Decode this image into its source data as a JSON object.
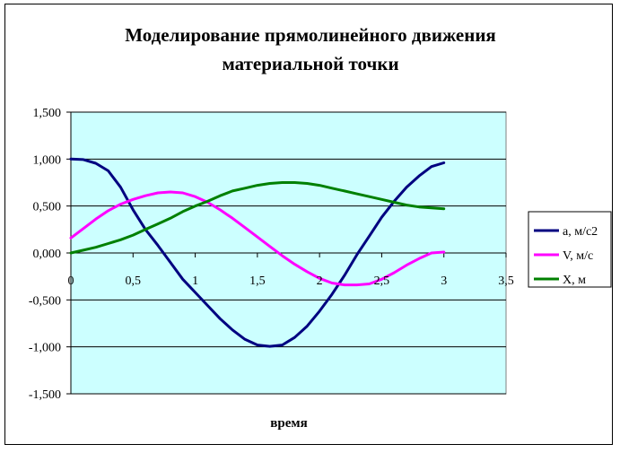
{
  "chart_data": {
    "type": "line",
    "title_lines": [
      "Моделирование прямолинейного движения",
      "материальной точки"
    ],
    "xlabel": "время",
    "ylabel": "",
    "xlim": [
      0,
      3.5
    ],
    "ylim": [
      -1.5,
      1.5
    ],
    "x_ticks": [
      "0",
      "0,5",
      "1",
      "1,5",
      "2",
      "2,5",
      "3",
      "3,5"
    ],
    "y_ticks": [
      "1,500",
      "1,000",
      "0,500",
      "0,000",
      "-0,500",
      "-1,000",
      "-1,500"
    ],
    "grid": "horizontal",
    "legend_position": "right",
    "plot_background": "#ccffff",
    "x": [
      0,
      0.1,
      0.2,
      0.3,
      0.4,
      0.5,
      0.6,
      0.7,
      0.8,
      0.9,
      1.0,
      1.1,
      1.2,
      1.3,
      1.4,
      1.5,
      1.6,
      1.7,
      1.8,
      1.9,
      2.0,
      2.1,
      2.2,
      2.3,
      2.4,
      2.5,
      2.6,
      2.7,
      2.8,
      2.9,
      3.0
    ],
    "series": [
      {
        "name": "a, м/с2",
        "color": "#000080",
        "values": [
          1.0,
          0.995,
          0.955,
          0.875,
          0.7,
          0.46,
          0.25,
          0.08,
          -0.1,
          -0.28,
          -0.42,
          -0.56,
          -0.7,
          -0.82,
          -0.92,
          -0.98,
          -0.995,
          -0.98,
          -0.9,
          -0.78,
          -0.62,
          -0.44,
          -0.24,
          -0.02,
          0.18,
          0.38,
          0.55,
          0.7,
          0.82,
          0.92,
          0.96
        ]
      },
      {
        "name": "V, м/с",
        "color": "#ff00ff",
        "values": [
          0.16,
          0.26,
          0.36,
          0.45,
          0.52,
          0.57,
          0.61,
          0.64,
          0.65,
          0.64,
          0.6,
          0.54,
          0.46,
          0.37,
          0.27,
          0.17,
          0.07,
          -0.03,
          -0.12,
          -0.2,
          -0.27,
          -0.32,
          -0.34,
          -0.34,
          -0.33,
          -0.28,
          -0.21,
          -0.13,
          -0.06,
          0.0,
          0.01
        ]
      },
      {
        "name": "X, м",
        "color": "#008000",
        "values": [
          0.0,
          0.03,
          0.06,
          0.1,
          0.14,
          0.19,
          0.25,
          0.31,
          0.37,
          0.44,
          0.5,
          0.55,
          0.61,
          0.66,
          0.69,
          0.72,
          0.74,
          0.75,
          0.75,
          0.74,
          0.72,
          0.69,
          0.66,
          0.63,
          0.6,
          0.57,
          0.54,
          0.51,
          0.49,
          0.48,
          0.47
        ]
      }
    ]
  }
}
